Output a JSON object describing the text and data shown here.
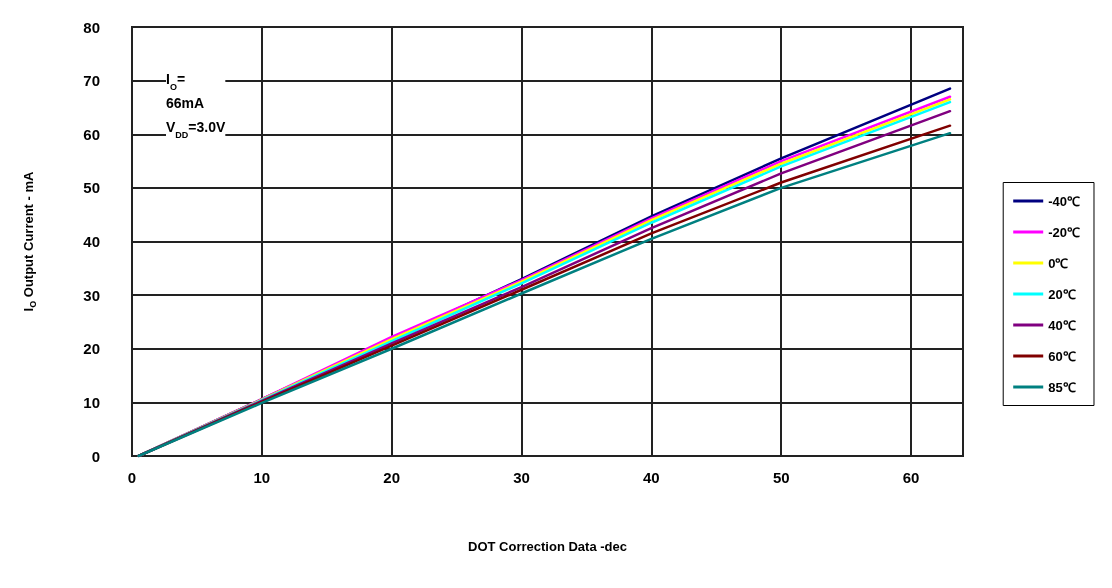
{
  "chart_data": {
    "type": "line",
    "xlabel": "DOT Correction Data -dec",
    "ylabel": "I$_{O}$ Output Current - mA",
    "annotations": [
      "I$_{O}$=\n66mA\nV$_{DD}$=3.0V"
    ],
    "x": [
      0.5,
      10,
      20,
      30,
      40,
      50,
      63
    ],
    "series": [
      {
        "name": "-40℃",
        "color": "#000080",
        "values": [
          0,
          10.6,
          21.8,
          33,
          44.7,
          55.5,
          68.5
        ]
      },
      {
        "name": "-20℃",
        "color": "#ff00ff",
        "values": [
          0,
          10.6,
          22.2,
          32.8,
          44.3,
          55,
          67
        ]
      },
      {
        "name": "0℃",
        "color": "#ffff00",
        "values": [
          0,
          10.5,
          21.8,
          32.5,
          44,
          54.5,
          66.5
        ]
      },
      {
        "name": "20℃",
        "color": "#00ffff",
        "values": [
          0,
          10.4,
          21.4,
          32.2,
          43.5,
          54,
          66
        ]
      },
      {
        "name": "40℃",
        "color": "#800080",
        "values": [
          0,
          10.3,
          21,
          31.5,
          42.5,
          52.7,
          64.3
        ]
      },
      {
        "name": "60℃",
        "color": "#800000",
        "values": [
          0,
          10.1,
          20.6,
          31,
          41.5,
          51,
          61.6
        ]
      },
      {
        "name": "85℃",
        "color": "#008080",
        "values": [
          0,
          9.9,
          20,
          30.3,
          40.5,
          50,
          60.2
        ]
      }
    ],
    "xlim": [
      0,
      64
    ],
    "xticks": [
      0,
      10,
      20,
      30,
      40,
      50,
      60
    ],
    "ylim": [
      0,
      80
    ],
    "yticks": [
      0,
      10,
      20,
      30,
      40,
      50,
      60,
      70,
      80
    ],
    "grid": true,
    "legend": "right",
    "marker": "none",
    "line_style": "solid"
  }
}
